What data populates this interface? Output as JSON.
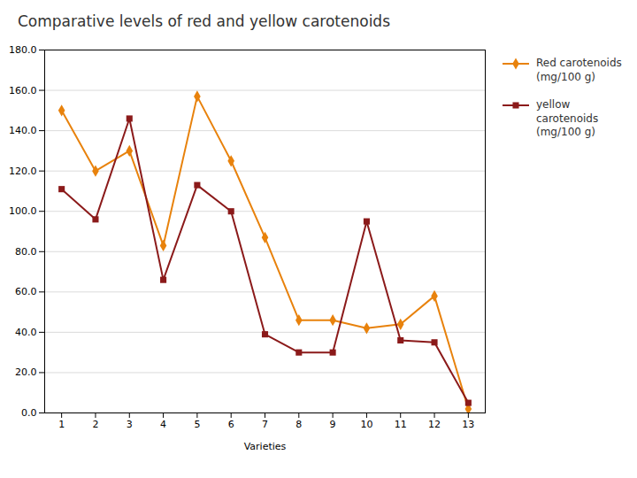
{
  "chart_data": {
    "type": "line",
    "title": "Comparative levels of red and yellow carotenoids",
    "xlabel": "Varieties",
    "x": [
      1,
      2,
      3,
      4,
      5,
      6,
      7,
      8,
      9,
      10,
      11,
      12,
      13
    ],
    "series": [
      {
        "name": "Red carotenoids\n(mg/100 g)",
        "color": "#E8820C",
        "marker": "diamond",
        "values": [
          150,
          120,
          130,
          83,
          157,
          125,
          87,
          46,
          46,
          42,
          44,
          58,
          2
        ]
      },
      {
        "name": "yellow\ncarotenoids\n(mg/100 g)",
        "color": "#8B1A1A",
        "marker": "square",
        "values": [
          111,
          96,
          146,
          66,
          113,
          100,
          39,
          30,
          30,
          95,
          36,
          35,
          5
        ]
      }
    ],
    "xlim": [
      0.5,
      13.5
    ],
    "xticks": [
      1,
      2,
      3,
      4,
      5,
      6,
      7,
      8,
      9,
      10,
      11,
      12,
      13
    ],
    "ylim": [
      0.0,
      180.0
    ],
    "yticks": [
      {
        "value": 0,
        "label": "0.0"
      },
      {
        "value": 20,
        "label": "20.0"
      },
      {
        "value": 40,
        "label": "40.0"
      },
      {
        "value": 60,
        "label": "60.0"
      },
      {
        "value": 80,
        "label": "80.0"
      },
      {
        "value": 100,
        "label": "100.0"
      },
      {
        "value": 120,
        "label": "120.0"
      },
      {
        "value": 140,
        "label": "140.0"
      },
      {
        "value": 160,
        "label": "160.0"
      },
      {
        "value": 180,
        "label": "180.0"
      }
    ],
    "grid": true,
    "legend": "right"
  }
}
